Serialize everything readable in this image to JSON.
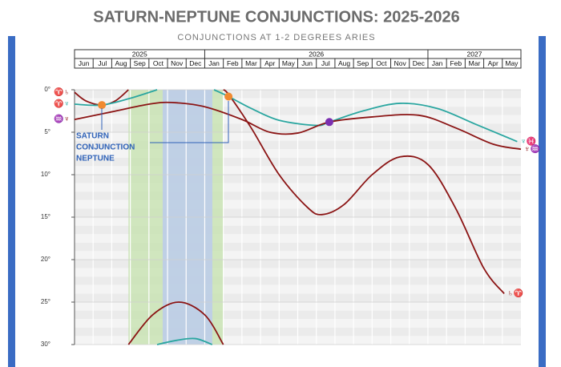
{
  "chart_data": {
    "type": "line",
    "title": "SATURN-NEPTUNE CONJUNCTIONS: 2025-2026",
    "subtitle": "CONJUNCTIONS AT 1-2 DEGREES ARIES",
    "categories": [
      "Jun",
      "Jul",
      "Aug",
      "Sep",
      "Oct",
      "Nov",
      "Dec",
      "Jan",
      "Feb",
      "Mar",
      "Apr",
      "May",
      "Jun",
      "Jul",
      "Aug",
      "Sep",
      "Oct",
      "Nov",
      "Dec",
      "Jan",
      "Feb",
      "Mar",
      "Apr",
      "May"
    ],
    "years": [
      {
        "label": "2025",
        "from": 0,
        "to": 7
      },
      {
        "label": "2026",
        "from": 7,
        "to": 19
      },
      {
        "label": "2027",
        "from": 19,
        "to": 24
      }
    ],
    "xlim": [
      0,
      24
    ],
    "ylim": [
      0,
      30
    ],
    "yticks": [
      {
        "value": 0,
        "label": "0°"
      },
      {
        "value": 5,
        "label": "5°"
      },
      {
        "value": 10,
        "label": "10°"
      },
      {
        "value": 15,
        "label": "15°"
      },
      {
        "value": 20,
        "label": "20°"
      },
      {
        "value": 25,
        "label": "25°"
      },
      {
        "value": 30,
        "label": "30°"
      }
    ],
    "grid": true,
    "bands": [
      {
        "from": 2.9,
        "to": 8.0,
        "color": "#c9e3b4"
      },
      {
        "from": 4.74,
        "to": 7.41,
        "color": "#bccbec"
      }
    ],
    "series": [
      {
        "color": "#8b1414",
        "start_label": "♈♄",
        "end_label": "♄♈",
        "x": [
          0,
          0.6,
          1.47,
          2.2,
          2.9,
          null,
          2.9,
          4.2,
          5.6,
          7,
          8.0,
          null,
          8.0,
          8.3,
          9.5,
          11,
          12.5,
          13.3,
          14.5,
          16,
          17.5,
          19,
          20.5,
          22,
          23.1
        ],
        "values": [
          0.3,
          1.3,
          1.8,
          1.3,
          0,
          null,
          30,
          26.5,
          25,
          26.5,
          30,
          null,
          0,
          0.6,
          4.5,
          10,
          13.8,
          14.7,
          13.5,
          10,
          7.9,
          8.8,
          14,
          21,
          24
        ]
      },
      {
        "color": "#2aa6a0",
        "start_label": "♈♆",
        "end_label": "♆♓",
        "x": [
          0,
          1.47,
          3,
          4.44,
          null,
          4.44,
          5.5,
          6.5,
          7.4,
          null,
          7.5,
          8.28,
          9.5,
          11,
          13,
          13.7,
          15.5,
          17.5,
          19.5,
          21.5,
          23.8
        ],
        "values": [
          1.7,
          1.8,
          1.0,
          0,
          null,
          30,
          29.5,
          29.3,
          30,
          null,
          0,
          0.8,
          2.2,
          3.6,
          4.2,
          3.8,
          2.5,
          1.6,
          2.2,
          4.0,
          6.1
        ]
      },
      {
        "color": "#8b1414",
        "start_label": "♒♆",
        "end_label": "♆♒",
        "x": [
          0,
          2,
          4,
          5.2,
          7,
          9,
          10.5,
          12,
          13.7,
          16,
          18.5,
          20.5,
          22.5,
          24
        ],
        "values": [
          3.5,
          2.6,
          1.7,
          1.5,
          2.0,
          3.5,
          5.0,
          5.1,
          3.8,
          3.2,
          3.0,
          4.5,
          6.4,
          7.0
        ]
      }
    ],
    "markers": [
      {
        "x": 1.47,
        "y": 1.8,
        "color": "#f08a30"
      },
      {
        "x": 8.28,
        "y": 0.8,
        "color": "#f08a30"
      },
      {
        "x": 13.7,
        "y": 3.8,
        "color": "#7b2fb0"
      }
    ],
    "annotation": [
      "SATURN",
      "CONJUNCTION",
      "NEPTUNE"
    ]
  }
}
